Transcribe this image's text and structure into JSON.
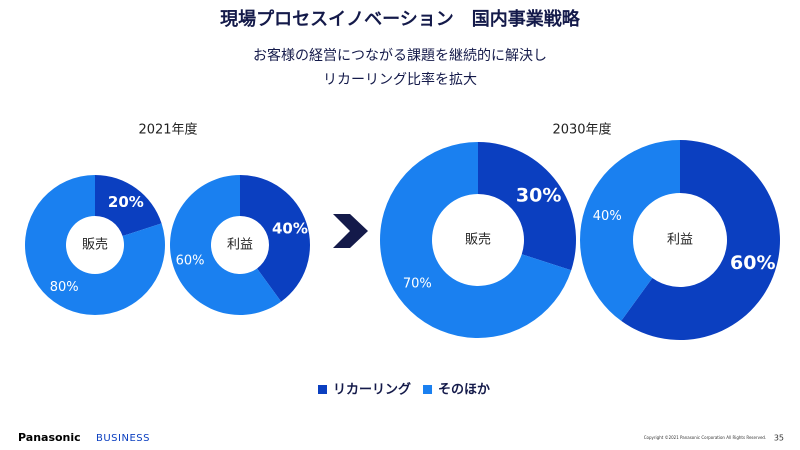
{
  "title": "現場プロセスイノベーション　国内事業戦略",
  "subtitle_lines": [
    "お客様の経営につながる課題を継続的に解決し",
    "リカーリング比率を拡大"
  ],
  "periods": [
    "2021年度",
    "2030年度"
  ],
  "legend": [
    {
      "name": "リカーリング",
      "color": "#0b3fc0"
    },
    {
      "name": "そのほか",
      "color": "#1a80f0"
    }
  ],
  "chart_data": [
    {
      "type": "pie",
      "center_label": "販売",
      "values": [
        20,
        80
      ],
      "value_labels": [
        "20%",
        "80%"
      ]
    },
    {
      "type": "pie",
      "center_label": "利益",
      "values": [
        40,
        60
      ],
      "value_labels": [
        "40%",
        "60%"
      ]
    },
    {
      "type": "pie",
      "center_label": "販売",
      "values": [
        30,
        70
      ],
      "value_labels": [
        "30%",
        "70%"
      ]
    },
    {
      "type": "pie",
      "center_label": "利益",
      "values": [
        60,
        40
      ],
      "value_labels": [
        "60%",
        "40%"
      ]
    }
  ],
  "footer": {
    "brand": "Panasonic",
    "division": "BUSINESS",
    "copyright": "Copyright ©2021  Panasonic Corporation All Rights Reserved.",
    "page": "35"
  }
}
